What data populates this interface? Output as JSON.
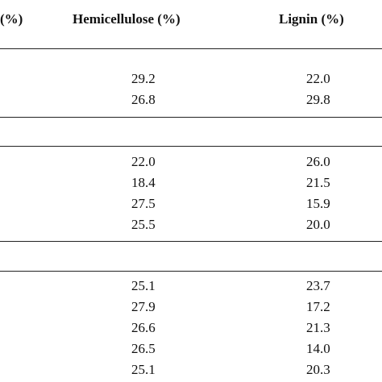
{
  "table": {
    "headers": {
      "left_partial": "(%)",
      "hemicellulose": "Hemicellulose (%)",
      "lignin": "Lignin (%)"
    },
    "groups": [
      {
        "rows": [
          {
            "hemicellulose": "29.2",
            "lignin": "22.0"
          },
          {
            "hemicellulose": "26.8",
            "lignin": "29.8"
          }
        ]
      },
      {
        "rows": [
          {
            "hemicellulose": "22.0",
            "lignin": "26.0"
          },
          {
            "hemicellulose": "18.4",
            "lignin": "21.5"
          },
          {
            "hemicellulose": "27.5",
            "lignin": "15.9"
          },
          {
            "hemicellulose": "25.5",
            "lignin": "20.0"
          }
        ]
      },
      {
        "rows": [
          {
            "hemicellulose": "25.1",
            "lignin": "23.7"
          },
          {
            "hemicellulose": "27.9",
            "lignin": "17.2"
          },
          {
            "hemicellulose": "26.6",
            "lignin": "21.3"
          },
          {
            "hemicellulose": "26.5",
            "lignin": "14.0"
          },
          {
            "hemicellulose": "25.1",
            "lignin": "20.3"
          }
        ]
      }
    ]
  }
}
